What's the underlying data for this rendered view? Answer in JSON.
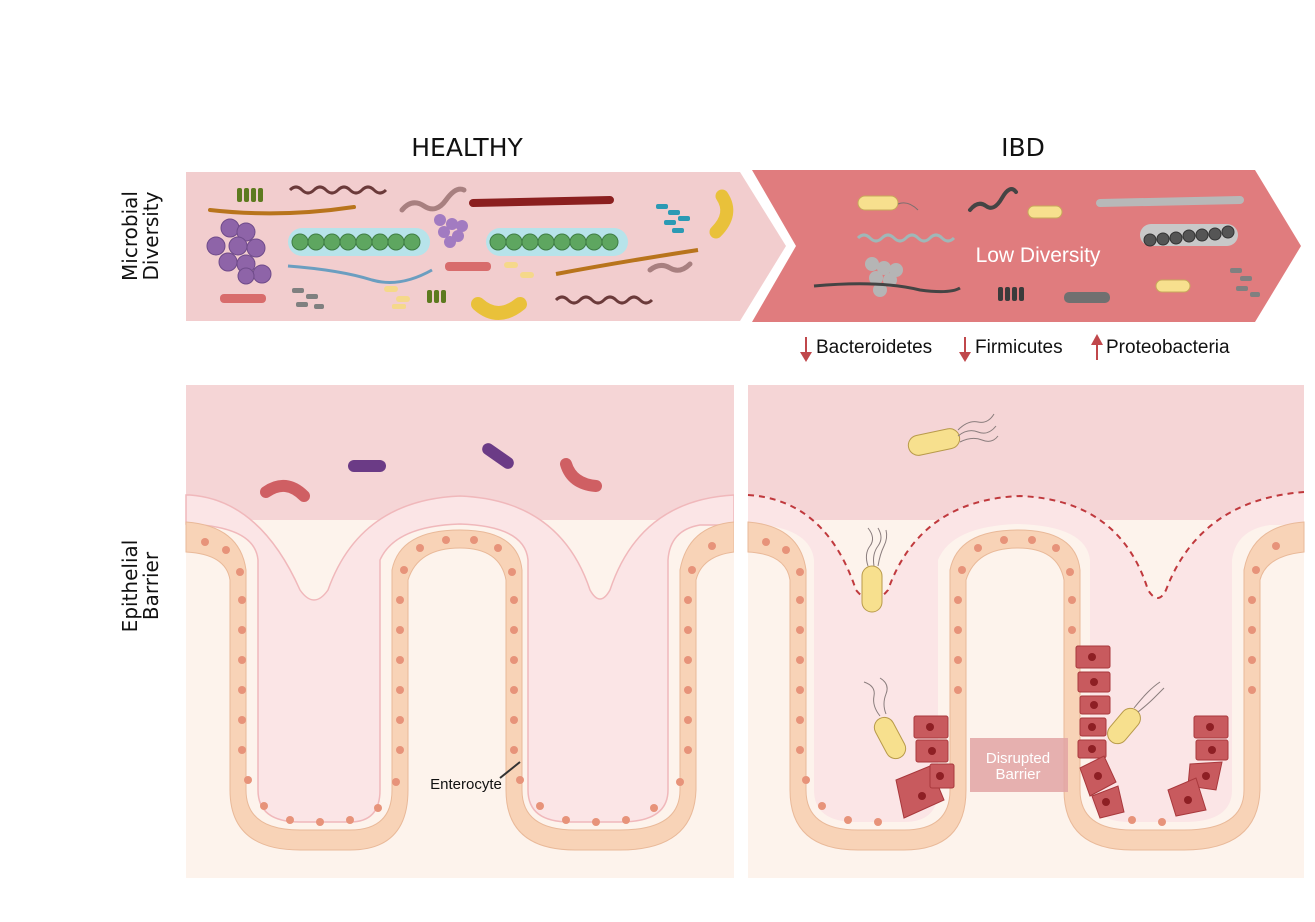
{
  "headings": {
    "healthy": "HEALTHY",
    "ibd": "IBD"
  },
  "row_labels": {
    "microbial": [
      "Microbial",
      "Diversity"
    ],
    "epithelial": [
      "Epithelial",
      "Barrier"
    ]
  },
  "low_diversity_label": "Low Diversity",
  "changes": [
    {
      "direction": "down",
      "label": "Bacteroidetes"
    },
    {
      "direction": "down",
      "label": "Firmicutes"
    },
    {
      "direction": "up",
      "label": "Proteobacteria"
    }
  ],
  "enterocyte_label": "Enterocyte",
  "disrupted_barrier_label": [
    "Disrupted",
    "Barrier"
  ],
  "colors": {
    "healthy_band": "#f2cdce",
    "ibd_band": "#e07c7e",
    "lumen": "#f5d5d6",
    "mucus": "#fbe5e6",
    "tissue": "#fdf3ec",
    "cell": "#f8d3b7",
    "damaged_cell": "#c85a5e",
    "arrow": "#c0474b",
    "dashed_barrier": "#c0393d"
  }
}
